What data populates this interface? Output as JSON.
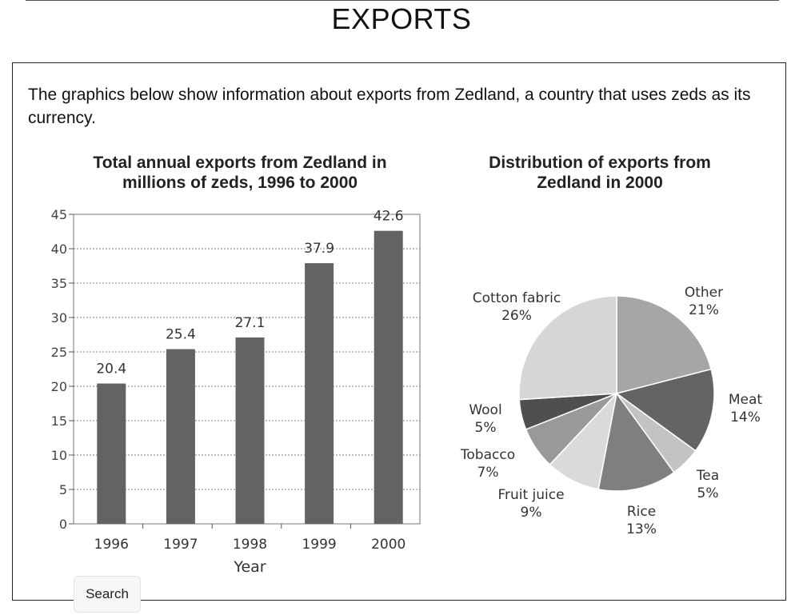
{
  "page": {
    "title": "EXPORTS",
    "intro": "The graphics below show information about exports from Zedland, a country that uses zeds as its currency.",
    "search_label": "Search"
  },
  "chart_data": [
    {
      "type": "bar",
      "title": "Total annual exports from Zedland in millions of zeds, 1996 to 2000",
      "xlabel": "Year",
      "ylabel": "",
      "categories": [
        "1996",
        "1997",
        "1998",
        "1999",
        "2000"
      ],
      "values": [
        20.4,
        25.4,
        27.1,
        37.9,
        42.6
      ],
      "data_labels": [
        "20.4",
        "25.4",
        "27.1",
        "37.9",
        "42.6"
      ],
      "ylim": [
        0,
        45
      ],
      "yticks": [
        0,
        5,
        10,
        15,
        20,
        25,
        30,
        35,
        40,
        45
      ],
      "grid": true,
      "bar_color": "#636363"
    },
    {
      "type": "pie",
      "title": "Distribution of exports from Zedland in 2000",
      "slices": [
        {
          "label": "Other",
          "value": 21,
          "pct": "21%",
          "color": "#a6a6a6"
        },
        {
          "label": "Meat",
          "value": 14,
          "pct": "14%",
          "color": "#646464"
        },
        {
          "label": "Tea",
          "value": 5,
          "pct": "5%",
          "color": "#c3c3c3"
        },
        {
          "label": "Rice",
          "value": 13,
          "pct": "13%",
          "color": "#7f7f7f"
        },
        {
          "label": "Fruit juice",
          "value": 9,
          "pct": "9%",
          "color": "#dadada"
        },
        {
          "label": "Tobacco",
          "value": 7,
          "pct": "7%",
          "color": "#999999"
        },
        {
          "label": "Wool",
          "value": 5,
          "pct": "5%",
          "color": "#4f4f4f"
        },
        {
          "label": "Cotton fabric",
          "value": 26,
          "pct": "26%",
          "color": "#d6d6d6"
        }
      ]
    }
  ]
}
